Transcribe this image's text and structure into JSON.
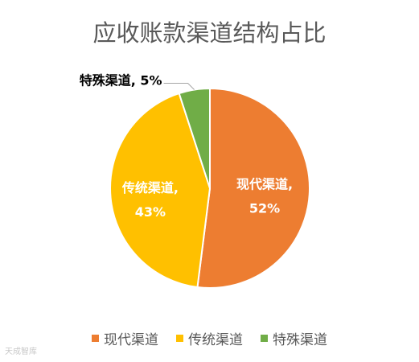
{
  "chart_data": {
    "type": "pie",
    "title": "应收账款渠道结构占比",
    "slices": [
      {
        "name": "现代渠道",
        "value": 52,
        "label_name": "现代渠道,",
        "label_value": "52%",
        "color": "#ED7D31"
      },
      {
        "name": "传统渠道",
        "value": 43,
        "label_name": "传统渠道,",
        "label_value": "43%",
        "color": "#FFC000"
      },
      {
        "name": "特殊渠道",
        "value": 5,
        "label": "特殊渠道, 5%",
        "color": "#70AD47"
      }
    ],
    "legend_position": "bottom",
    "start_angle_deg": 0,
    "direction": "clockwise"
  },
  "watermark": "天成智库"
}
